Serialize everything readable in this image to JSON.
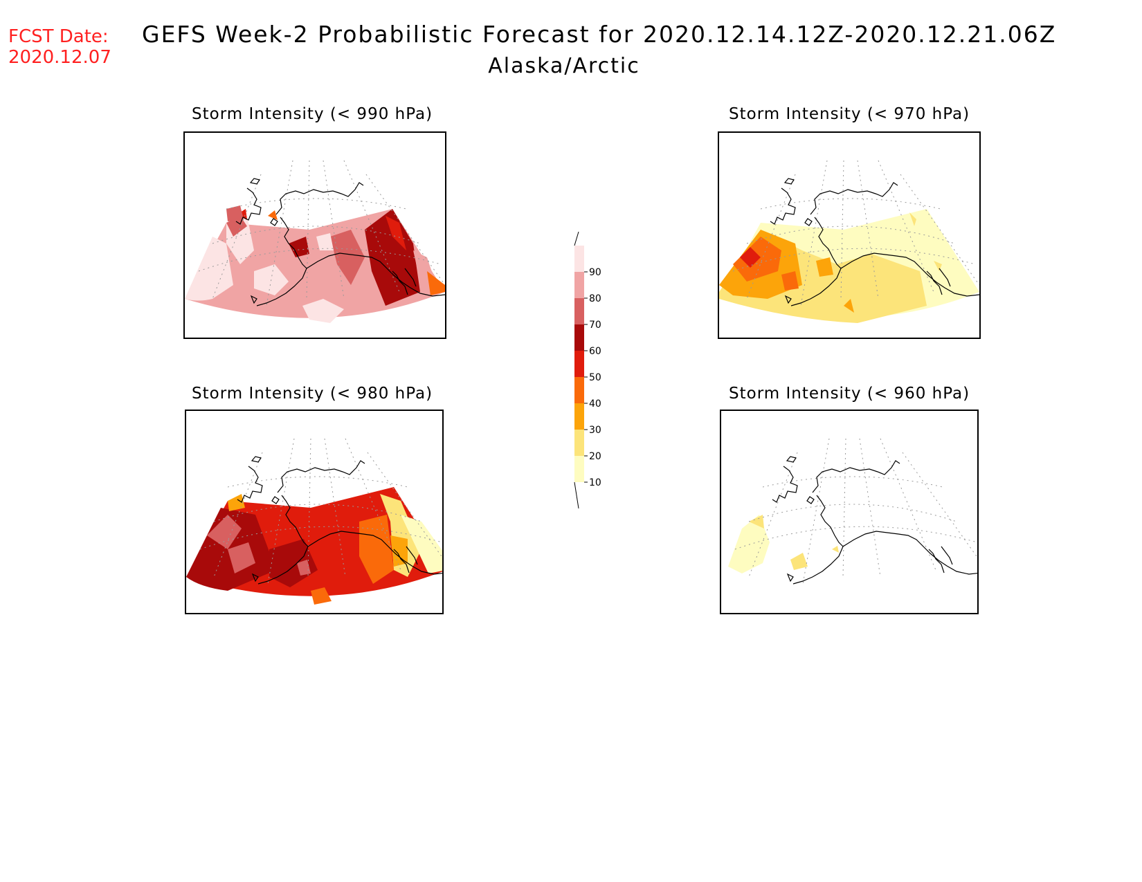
{
  "header": {
    "fcst_label": "FCST Date:",
    "fcst_date": "2020.12.07",
    "title": "GEFS Week-2 Probabilistic Forecast for 2020.12.14.12Z-2020.12.21.06Z",
    "region": "Alaska/Arctic"
  },
  "panels": [
    {
      "id": "p990",
      "title": "Storm Intensity (< 990 hPa)"
    },
    {
      "id": "p970",
      "title": "Storm Intensity (< 970 hPa)"
    },
    {
      "id": "p980",
      "title": "Storm Intensity (< 980 hPa)"
    },
    {
      "id": "p960",
      "title": "Storm Intensity (< 960 hPa)"
    }
  ],
  "colorbar": {
    "levels": [
      "90",
      "80",
      "70",
      "60",
      "50",
      "40",
      "30",
      "20",
      "10"
    ],
    "colors": [
      "#fce4e4",
      "#f0a4a4",
      "#d86060",
      "#a80a0a",
      "#e01c0c",
      "#fa6a0a",
      "#fca40a",
      "#fce47a",
      "#fefcc0"
    ]
  },
  "palette": {
    "lt_pink": "#fce4e4",
    "pink": "#f0a4a4",
    "rose": "#d86060",
    "dark_red": "#a80a0a",
    "red": "#e01c0c",
    "orange": "#fa6a0a",
    "amber": "#fca40a",
    "yellow": "#fce47a",
    "lt_yellow": "#fefcc0"
  }
}
